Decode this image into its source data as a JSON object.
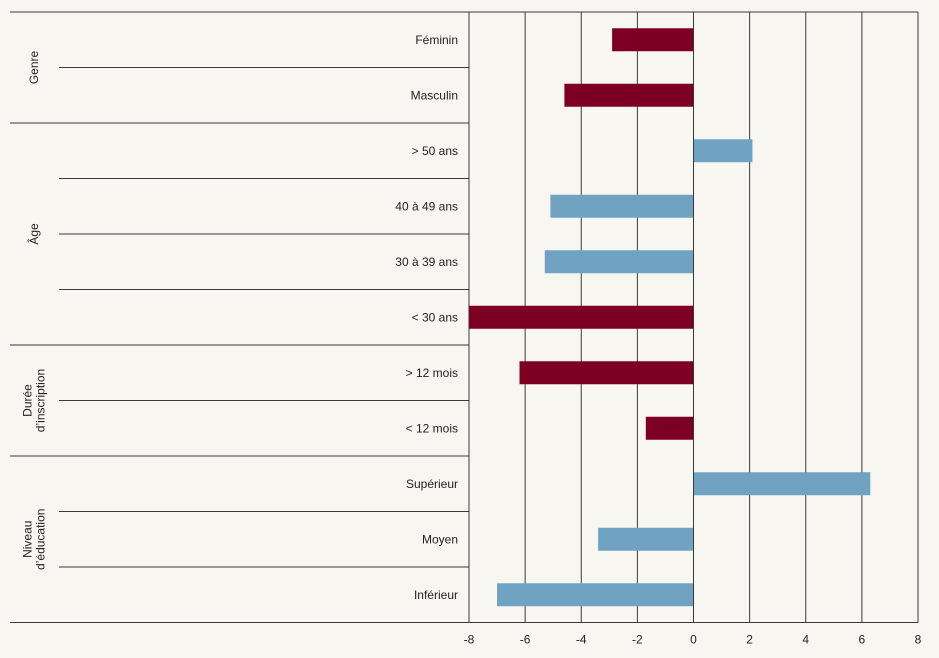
{
  "chart_data": {
    "type": "bar",
    "orientation": "horizontal",
    "groups": [
      {
        "label_lines": [
          "Genre"
        ],
        "categories": [
          "Féminin",
          "Masculin"
        ]
      },
      {
        "label_lines": [
          "Âge"
        ],
        "categories": [
          "> 50 ans",
          "40 à 49 ans",
          "30 à 39 ans",
          "< 30 ans"
        ]
      },
      {
        "label_lines": [
          "Durée",
          "d’inscription"
        ],
        "categories": [
          "> 12 mois",
          "< 12 mois"
        ]
      },
      {
        "label_lines": [
          "Niveau",
          "d’éducation"
        ],
        "categories": [
          "Supérieur",
          "Moyen",
          "Inférieur"
        ]
      }
    ],
    "categories": [
      "Féminin",
      "Masculin",
      "> 50 ans",
      "40 à 49 ans",
      "30 à 39 ans",
      "< 30 ans",
      "> 12 mois",
      "< 12 mois",
      "Supérieur",
      "Moyen",
      "Inférieur"
    ],
    "values": [
      -2.9,
      -4.6,
      2.1,
      -5.1,
      -5.3,
      -8.0,
      -6.2,
      -1.7,
      6.3,
      -3.4,
      -7.0
    ],
    "bar_colors": [
      "#7d0022",
      "#7d0022",
      "#6fa3c1",
      "#6fa3c1",
      "#6fa3c1",
      "#7d0022",
      "#7d0022",
      "#7d0022",
      "#6fa3c1",
      "#6fa3c1",
      "#6fa3c1"
    ],
    "xlim": [
      -8,
      8
    ],
    "xticks": [
      -8,
      -6,
      -4,
      -2,
      0,
      2,
      4,
      6,
      8
    ],
    "xtick_labels": [
      "-8",
      "-6",
      "-4",
      "-2",
      "0",
      "2",
      "4",
      "6",
      "8"
    ],
    "title": "",
    "xlabel": "",
    "ylabel": "",
    "grid": true,
    "legend": "none"
  }
}
